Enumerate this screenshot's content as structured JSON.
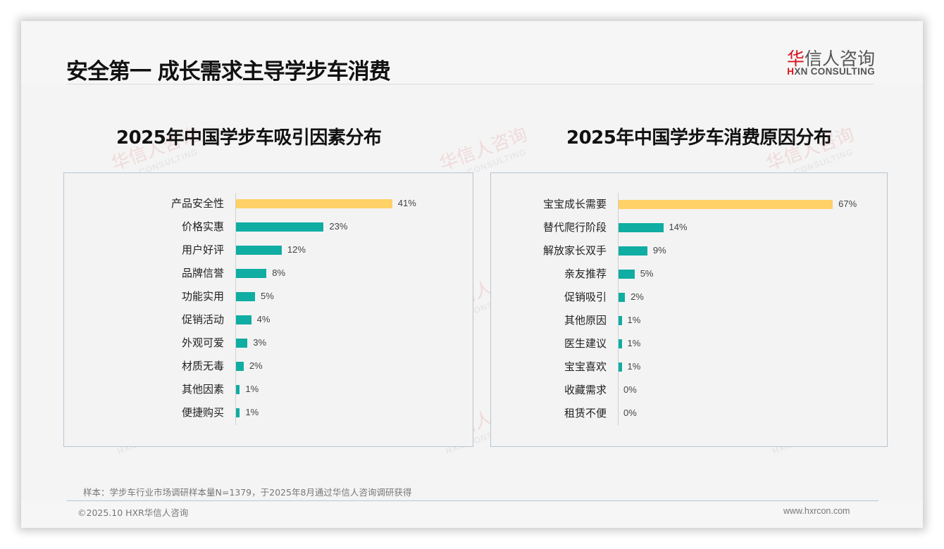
{
  "page": {
    "title": "安全第一 成长需求主导学步车消费",
    "logo": {
      "cn_red": "华",
      "cn_rest": "信人咨询",
      "en_red": "H",
      "en_rest": "XN CONSULTING"
    },
    "watermark": {
      "cn": "华信人咨询",
      "en": "HXN CONSULTING"
    },
    "note": "样本：学步车行业市场调研样本量N=1379，于2025年8月通过华信人咨询调研获得",
    "copyright": "©2025.10 HXR华信人咨询",
    "website": "www.hxrcon.com"
  },
  "colors": {
    "highlight": "#ffd166",
    "bar": "#0fada2",
    "box_border": "#b8c4d2",
    "logo_red": "#d7141a"
  },
  "chart_data": [
    {
      "type": "bar",
      "orientation": "horizontal",
      "title": "2025年中国学步车吸引因素分布",
      "categories": [
        "产品安全性",
        "价格实惠",
        "用户好评",
        "品牌信誉",
        "功能实用",
        "促销活动",
        "外观可爱",
        "材质无毒",
        "其他因素",
        "便捷购买"
      ],
      "values": [
        41,
        23,
        12,
        8,
        5,
        4,
        3,
        2,
        1,
        1
      ],
      "labels": [
        "41%",
        "23%",
        "12%",
        "8%",
        "5%",
        "4%",
        "3%",
        "2%",
        "1%",
        "1%"
      ],
      "unit": "%",
      "highlight_index": 0,
      "xlabel": "",
      "ylabel": "",
      "grid": false,
      "legend": false
    },
    {
      "type": "bar",
      "orientation": "horizontal",
      "title": "2025年中国学步车消费原因分布",
      "categories": [
        "宝宝成长需要",
        "替代爬行阶段",
        "解放家长双手",
        "亲友推荐",
        "促销吸引",
        "其他原因",
        "医生建议",
        "宝宝喜欢",
        "收藏需求",
        "租赁不便"
      ],
      "values": [
        67,
        14,
        9,
        5,
        2,
        1,
        1,
        1,
        0,
        0
      ],
      "labels": [
        "67%",
        "14%",
        "9%",
        "5%",
        "2%",
        "1%",
        "1%",
        "1%",
        "0%",
        "0%"
      ],
      "unit": "%",
      "highlight_index": 0,
      "xlabel": "",
      "ylabel": "",
      "grid": false,
      "legend": false
    }
  ]
}
